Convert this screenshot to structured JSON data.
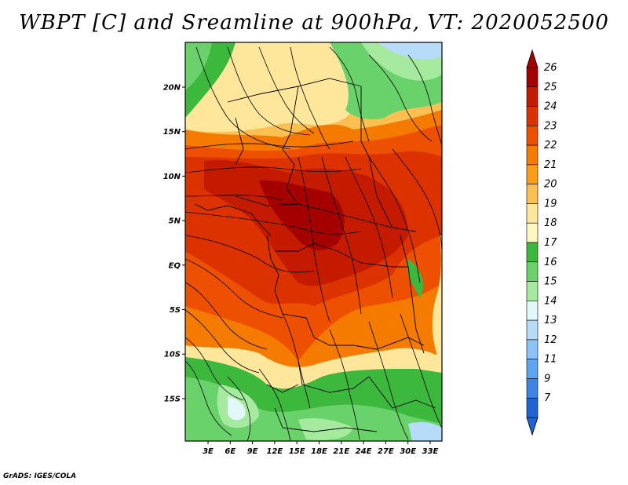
{
  "title": "WBPT [C] and Sreamline at 900hPa, VT: 2020052500",
  "credit": "GrADS: IGES/COLA",
  "chart_data": {
    "type": "heatmap",
    "title": "WBPT [C] and Sreamline at 900hPa, VT: 2020052500",
    "variable": "WBPT [C]",
    "overlay": "Streamline",
    "level": "900hPa",
    "valid_time": "2020052500",
    "lat_ticks": [
      "20N",
      "15N",
      "10N",
      "5N",
      "EQ",
      "5S",
      "10S",
      "15S"
    ],
    "lon_ticks": [
      "3E",
      "6E",
      "9E",
      "12E",
      "15E",
      "18E",
      "21E",
      "24E",
      "27E",
      "30E",
      "33E"
    ],
    "colorbar": {
      "levels": [
        "26",
        "25",
        "24",
        "23",
        "22",
        "21",
        "20",
        "19",
        "18",
        "17",
        "16",
        "15",
        "14",
        "13",
        "12",
        "11",
        "9",
        "7"
      ],
      "colors": [
        "#a50000",
        "#c41a00",
        "#dc3200",
        "#ec5000",
        "#f57a00",
        "#fa9e18",
        "#fbc052",
        "#fee79a",
        "#fff7c0",
        "#3cb83c",
        "#6ad26a",
        "#a6eaa0",
        "#e2f7f7",
        "#b7dcfa",
        "#8cc3f7",
        "#5fa4ee",
        "#3c85e5",
        "#1f64d4"
      ]
    }
  }
}
